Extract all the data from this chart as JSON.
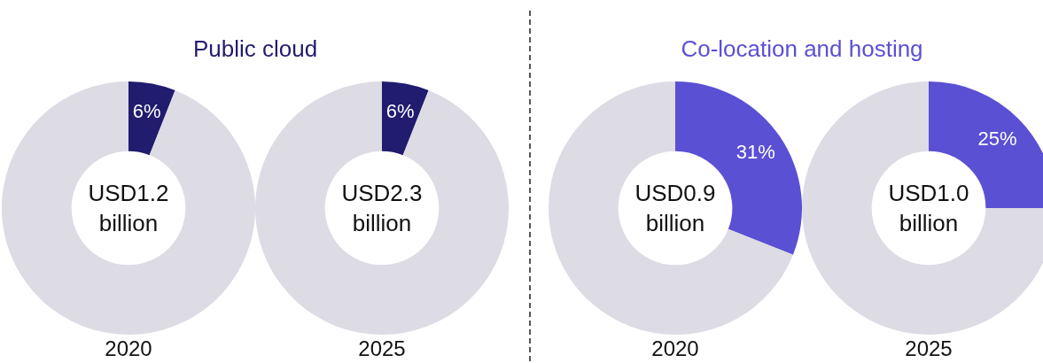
{
  "chart_data": [
    {
      "type": "donut",
      "title": "Public cloud",
      "categories": [
        null,
        null
      ],
      "values": [
        6,
        94
      ],
      "colors": [
        "#211c6e",
        "#dddbe3"
      ],
      "value_labels": [
        "6%",
        null
      ],
      "annotations": [
        "USD1.2 billion"
      ],
      "xlabel": "2020"
    },
    {
      "type": "donut",
      "categories": [
        null,
        null
      ],
      "values": [
        6,
        94
      ],
      "colors": [
        "#211c6e",
        "#dddbe3"
      ],
      "value_labels": [
        "6%",
        null
      ],
      "annotations": [
        "USD2.3 billion"
      ],
      "xlabel": "2025"
    },
    {
      "type": "donut",
      "title": "Co-location and hosting",
      "categories": [
        null,
        null
      ],
      "values": [
        31,
        69
      ],
      "colors": [
        "#5a50d4",
        "#dddbe3"
      ],
      "value_labels": [
        "31%",
        null
      ],
      "annotations": [
        "USD0.9 billion"
      ],
      "xlabel": "2020"
    },
    {
      "type": "donut",
      "categories": [
        null,
        null
      ],
      "values": [
        25,
        75
      ],
      "colors": [
        "#5a50d4",
        "#dddbe3"
      ],
      "value_labels": [
        "25%",
        null
      ],
      "annotations": [
        "USD1.0 billion"
      ],
      "xlabel": "2025"
    }
  ]
}
